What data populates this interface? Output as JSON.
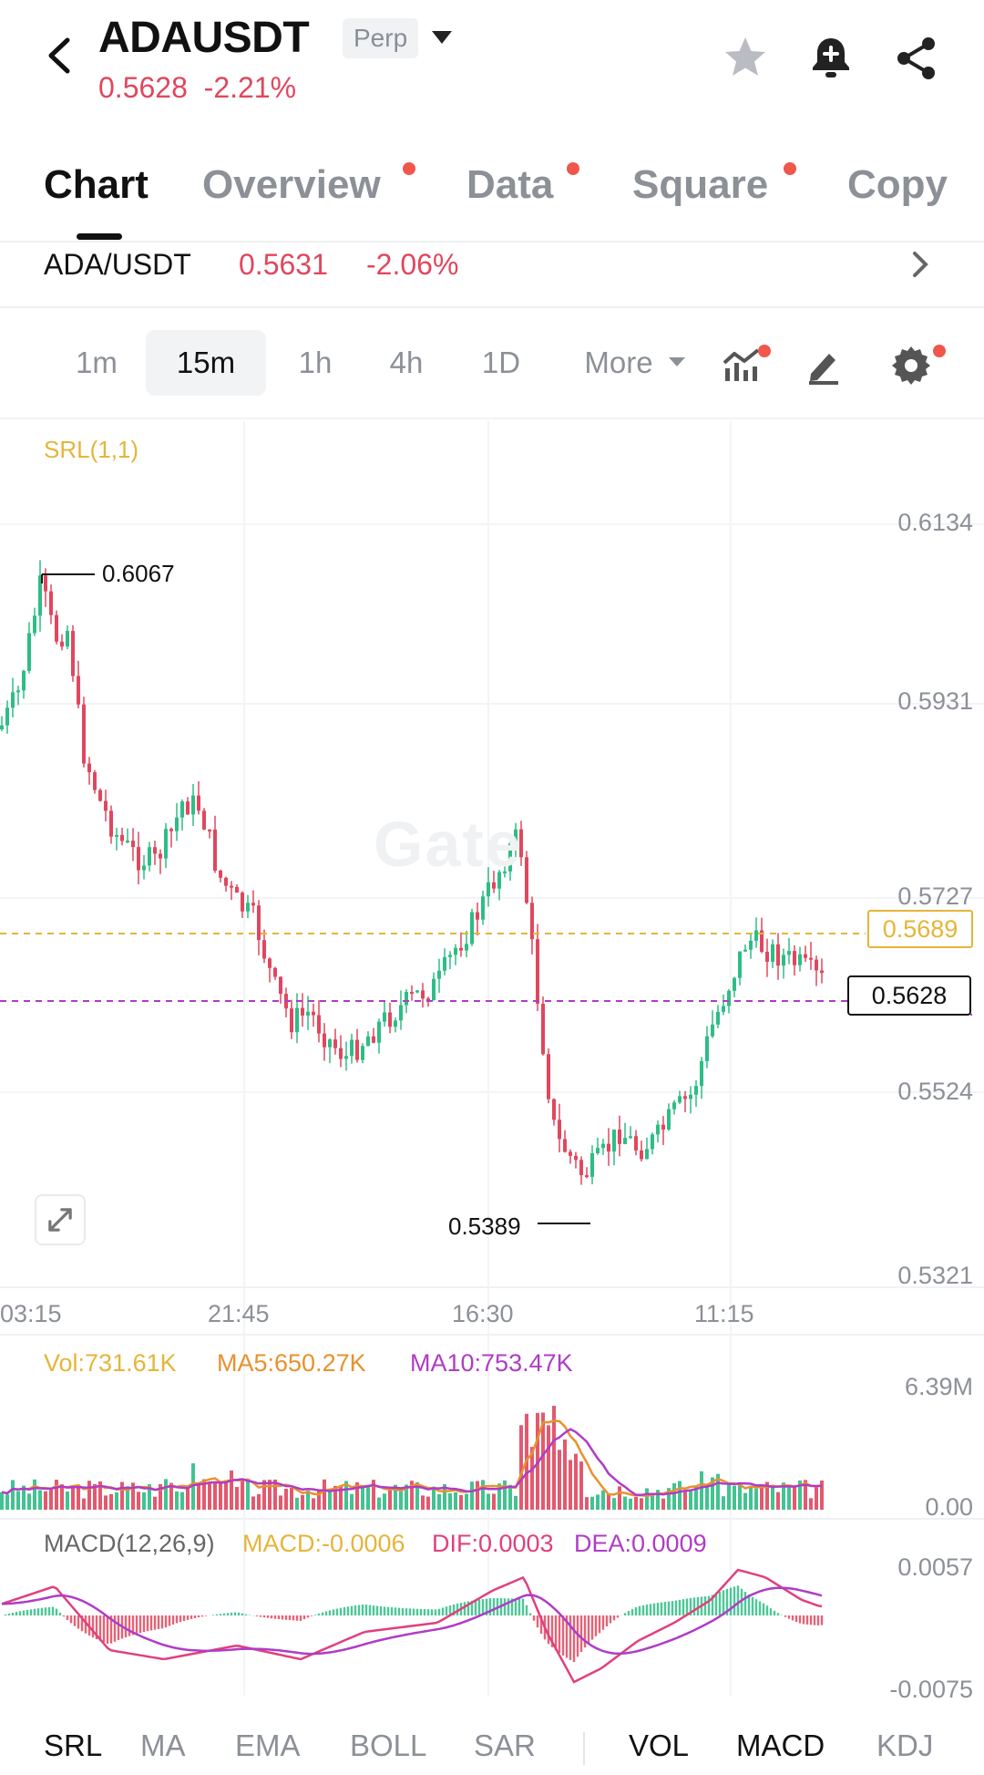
{
  "header": {
    "symbol": "ADAUSDT",
    "badge": "Perp",
    "last_price": "0.5628",
    "change_pct": "-2.21%"
  },
  "tabs": [
    {
      "label": "Chart",
      "active": true,
      "dot": false
    },
    {
      "label": "Overview",
      "active": false,
      "dot": true
    },
    {
      "label": "Data",
      "active": false,
      "dot": true
    },
    {
      "label": "Square",
      "active": false,
      "dot": true
    },
    {
      "label": "Copy",
      "active": false,
      "dot": false
    }
  ],
  "spot": {
    "pair": "ADA/USDT",
    "price": "0.5631",
    "change": "-2.06%"
  },
  "intervals": [
    "1m",
    "15m",
    "1h",
    "4h",
    "1D"
  ],
  "interval_active": "15m",
  "more_label": "More",
  "toolbar_icons": [
    "indicators-icon",
    "draw-icon",
    "settings-icon"
  ],
  "chart": {
    "overlay_label": "SRL(1,1)",
    "price_axis": [
      "0.6134",
      "0.5931",
      "0.5727",
      "0.5524",
      "0.5321"
    ],
    "time_axis": [
      "03:15",
      "21:45",
      "16:30",
      "11:15"
    ],
    "high_label": "0.6067",
    "low_label": "0.5389",
    "srl_price": "0.5689",
    "current_price": "0.5628",
    "watermark": "Gate",
    "colors": {
      "up": "#2dbd85",
      "down": "#e0475e",
      "srl": "#e5b53a",
      "ma10": "#b03cc6",
      "ma5": "#e8912d"
    }
  },
  "volume": {
    "vol": "Vol:731.61K",
    "ma5": "MA5:650.27K",
    "ma10": "MA10:753.47K",
    "axis_top": "6.39M",
    "axis_bottom": "0.00"
  },
  "macd": {
    "name": "MACD(12,26,9)",
    "macd": "MACD:-0.0006",
    "dif": "DIF:0.0003",
    "dea": "DEA:0.0009",
    "axis_top": "0.0057",
    "axis_bottom": "-0.0075"
  },
  "bottom_indicators": {
    "main": [
      "SRL",
      "MA",
      "EMA",
      "BOLL",
      "SAR"
    ],
    "sub": [
      "VOL",
      "MACD",
      "KDJ"
    ],
    "active": [
      "SRL",
      "VOL",
      "MACD"
    ]
  }
}
